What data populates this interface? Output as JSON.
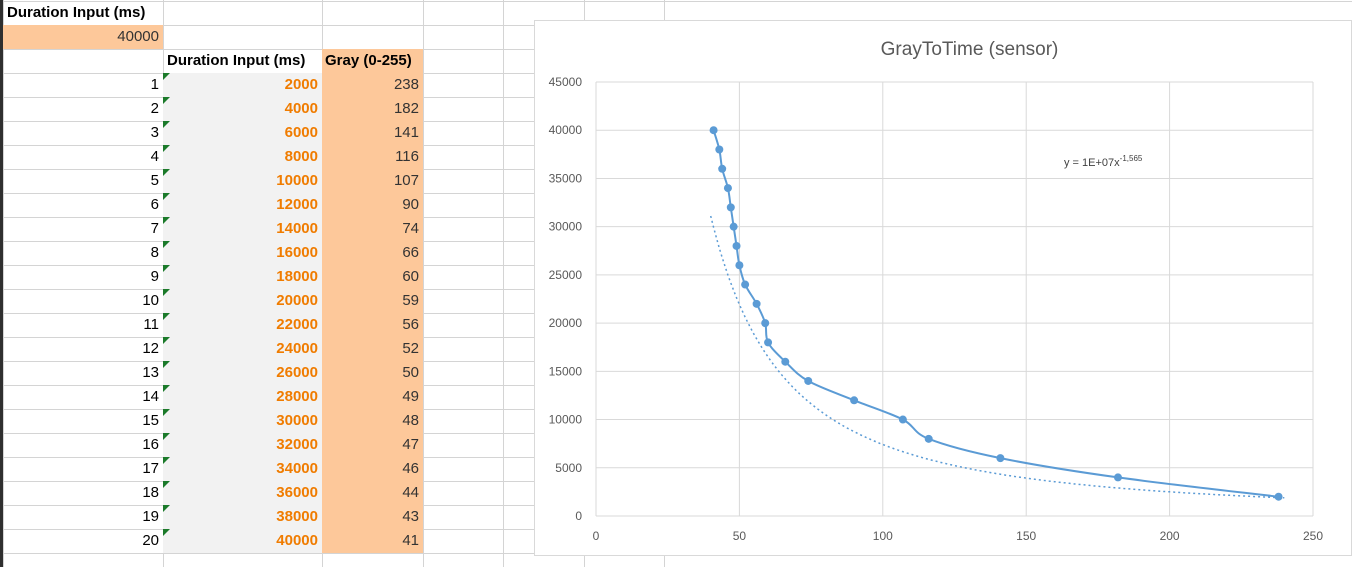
{
  "sheet": {
    "param_label": "Duration Input (ms)",
    "param_value": "40000",
    "table_headers": {
      "duration": "Duration Input (ms)",
      "gray": "Gray (0-255)"
    },
    "rows": [
      {
        "n": "1",
        "duration": "2000",
        "gray": "238"
      },
      {
        "n": "2",
        "duration": "4000",
        "gray": "182"
      },
      {
        "n": "3",
        "duration": "6000",
        "gray": "141"
      },
      {
        "n": "4",
        "duration": "8000",
        "gray": "116"
      },
      {
        "n": "5",
        "duration": "10000",
        "gray": "107"
      },
      {
        "n": "6",
        "duration": "12000",
        "gray": "90"
      },
      {
        "n": "7",
        "duration": "14000",
        "gray": "74"
      },
      {
        "n": "8",
        "duration": "16000",
        "gray": "66"
      },
      {
        "n": "9",
        "duration": "18000",
        "gray": "60"
      },
      {
        "n": "10",
        "duration": "20000",
        "gray": "59"
      },
      {
        "n": "11",
        "duration": "22000",
        "gray": "56"
      },
      {
        "n": "12",
        "duration": "24000",
        "gray": "52"
      },
      {
        "n": "13",
        "duration": "26000",
        "gray": "50"
      },
      {
        "n": "14",
        "duration": "28000",
        "gray": "49"
      },
      {
        "n": "15",
        "duration": "30000",
        "gray": "48"
      },
      {
        "n": "16",
        "duration": "32000",
        "gray": "47"
      },
      {
        "n": "17",
        "duration": "34000",
        "gray": "46"
      },
      {
        "n": "18",
        "duration": "36000",
        "gray": "44"
      },
      {
        "n": "19",
        "duration": "38000",
        "gray": "43"
      },
      {
        "n": "20",
        "duration": "40000",
        "gray": "41"
      }
    ]
  },
  "colors": {
    "header_fill": "#fdc89a",
    "duration_text": "#f07c00",
    "series": "#5b9bd5",
    "gridline": "#d9d9d9",
    "error_indicator": "#1b7a2a"
  },
  "chart_data": {
    "type": "scatter",
    "title": "GrayToTime (sensor)",
    "xlabel": "",
    "ylabel": "",
    "xlim": [
      0,
      250
    ],
    "ylim": [
      0,
      45000
    ],
    "xticks": [
      "0",
      "50",
      "100",
      "150",
      "200",
      "250"
    ],
    "yticks": [
      "0",
      "5000",
      "10000",
      "15000",
      "20000",
      "25000",
      "30000",
      "35000",
      "40000",
      "45000"
    ],
    "grid": true,
    "series": [
      {
        "x": [
          238,
          182,
          141,
          116,
          107,
          90,
          74,
          66,
          60,
          59,
          56,
          52,
          50,
          49,
          48,
          47,
          46,
          44,
          43,
          41
        ],
        "y": [
          2000,
          4000,
          6000,
          8000,
          10000,
          12000,
          14000,
          16000,
          18000,
          20000,
          22000,
          24000,
          26000,
          28000,
          30000,
          32000,
          34000,
          36000,
          38000,
          40000
        ],
        "style": "smooth-line-with-markers",
        "color": "#5b9bd5"
      }
    ],
    "trendline": {
      "type": "power",
      "coef": 10000000,
      "exponent": -1.565,
      "label_main": "y = 1E+07x",
      "label_exp": "-1,565",
      "style": "dotted",
      "color": "#5b9bd5"
    }
  }
}
